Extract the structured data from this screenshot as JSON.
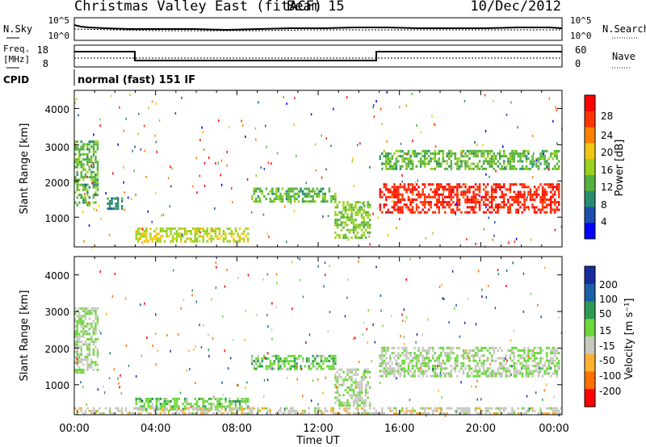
{
  "header": {
    "title": "Christmas Valley East (fitACF)",
    "beam": "Beam 15",
    "date": "10/Dec/2012"
  },
  "top_panel": {
    "left_label": "N.Sky",
    "right_label": "N.Search",
    "left_ticks": [
      "10^5",
      "10^0"
    ],
    "right_ticks": [
      "10^5",
      "10^0"
    ]
  },
  "freq_panel": {
    "left_label_line1": "Freq.",
    "left_label_line2": "[MHz]",
    "right_label": "Nave",
    "left_ticks": [
      "18",
      "8"
    ],
    "right_ticks": [
      "60",
      "0"
    ]
  },
  "cpid": {
    "label": "CPID",
    "text": "normal (fast) 151 IF"
  },
  "power_panel": {
    "ylabel": "Slant Range [km]",
    "yticks": [
      "4000",
      "3000",
      "2000",
      "1000"
    ],
    "colorbar_label": "Power [dB]",
    "colorbar_ticks": [
      "28",
      "24",
      "20",
      "16",
      "12",
      "8",
      "4"
    ],
    "colors": [
      "#0000ff",
      "#1d4fae",
      "#2a8c6e",
      "#55b23c",
      "#9ad21e",
      "#f0c814",
      "#ff7f00",
      "#ff3300",
      "#ff0000"
    ]
  },
  "velocity_panel": {
    "ylabel": "Slant Range [km]",
    "yticks": [
      "4000",
      "3000",
      "2000",
      "1000"
    ],
    "colorbar_label": "Velocity [m s⁻¹]",
    "colorbar_ticks": [
      "200",
      "100",
      "50",
      "15",
      "-15",
      "-50",
      "-100",
      "-200"
    ],
    "colors": [
      "#1a2ba0",
      "#1a61a6",
      "#2f9a55",
      "#6cd83a",
      "#c8c8c0",
      "#ffb030",
      "#ff7000",
      "#ff0000"
    ]
  },
  "xaxis": {
    "label": "Time UT",
    "ticks": [
      "00:00",
      "04:00",
      "08:00",
      "12:00",
      "16:00",
      "20:00",
      "00:00"
    ]
  },
  "chart_data": [
    {
      "type": "heatmap",
      "title": "Christmas Valley East (fitACF) Beam 15 10/Dec/2012",
      "xlabel": "Time UT",
      "ylabel": "Slant Range [km]",
      "colorbar": "Power [dB]",
      "xlim_hours": [
        0,
        24
      ],
      "ylim_km": [
        180,
        4500
      ],
      "clim": [
        0,
        30
      ],
      "regions": [
        {
          "t0": 0.0,
          "t1": 1.2,
          "r0": 1300,
          "r1": 3100,
          "value": 12
        },
        {
          "t0": 1.6,
          "t1": 2.4,
          "r0": 1200,
          "r1": 1500,
          "value": 8
        },
        {
          "t0": 8.7,
          "t1": 12.8,
          "r0": 1400,
          "r1": 1800,
          "value": 12
        },
        {
          "t0": 12.8,
          "t1": 14.5,
          "r0": 400,
          "r1": 1400,
          "value": 14
        },
        {
          "t0": 15.0,
          "t1": 23.9,
          "r0": 1100,
          "r1": 1900,
          "value": 26
        },
        {
          "t0": 15.0,
          "t1": 23.9,
          "r0": 2300,
          "r1": 2800,
          "value": 12
        },
        {
          "t0": 3.0,
          "t1": 8.5,
          "r0": 300,
          "r1": 700,
          "value": 16
        }
      ]
    },
    {
      "type": "heatmap",
      "xlabel": "Time UT",
      "ylabel": "Slant Range [km]",
      "colorbar": "Velocity [m s⁻¹]",
      "xlim_hours": [
        0,
        24
      ],
      "ylim_km": [
        180,
        4500
      ],
      "clim": [
        -200,
        200
      ],
      "regions": [
        {
          "t0": 0.0,
          "t1": 1.2,
          "r0": 1300,
          "r1": 3100,
          "value": 0
        },
        {
          "t0": 8.7,
          "t1": 12.8,
          "r0": 1400,
          "r1": 1800,
          "value": 30
        },
        {
          "t0": 12.8,
          "t1": 14.5,
          "r0": 400,
          "r1": 1400,
          "value": 0
        },
        {
          "t0": 15.0,
          "t1": 23.9,
          "r0": 1200,
          "r1": 2000,
          "value": 0
        },
        {
          "t0": 3.0,
          "t1": 8.5,
          "r0": 300,
          "r1": 600,
          "value": 30
        },
        {
          "t0": 0.0,
          "t1": 24.0,
          "r0": 180,
          "r1": 350,
          "value": -30
        }
      ]
    }
  ]
}
